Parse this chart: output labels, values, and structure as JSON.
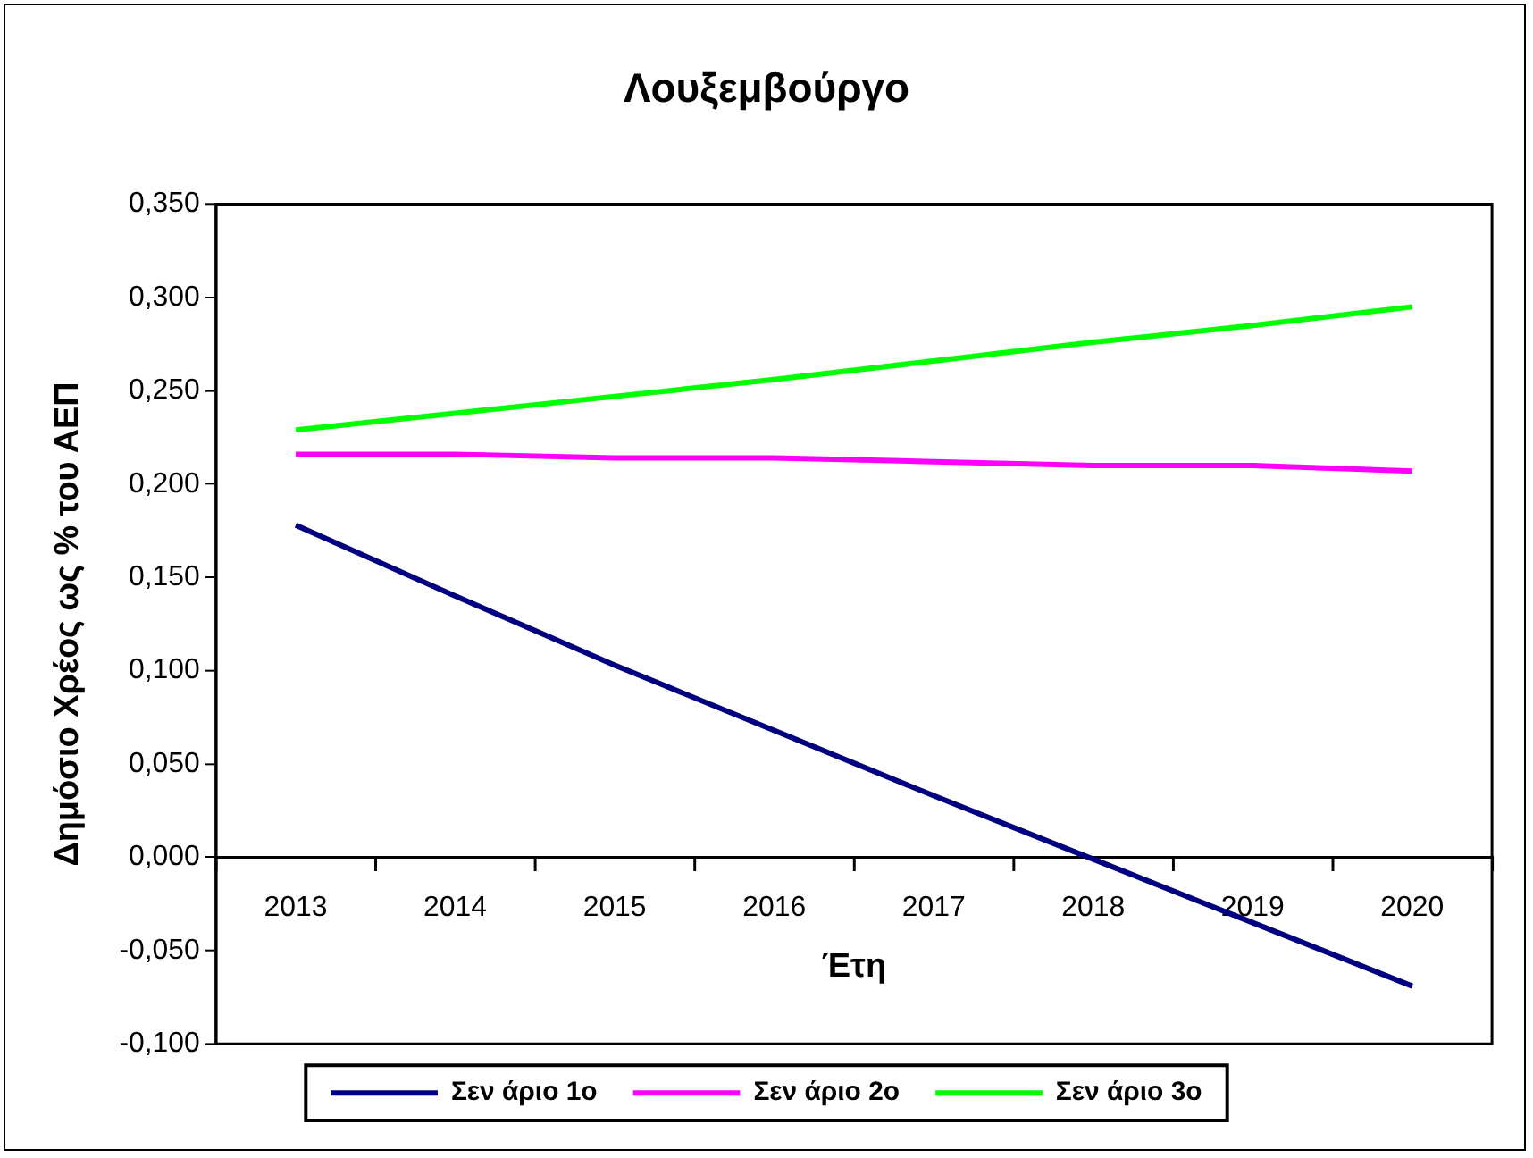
{
  "chart_data": {
    "type": "line",
    "title": "Λουξεμβούργο",
    "xlabel": "Έτη",
    "ylabel": "Δημόσιο Χρέος ως % του ΑΕΠ",
    "categories": [
      "2013",
      "2014",
      "2015",
      "2016",
      "2017",
      "2018",
      "2019",
      "2020"
    ],
    "series": [
      {
        "name": "Σεν άριο 1ο",
        "color": "#000080",
        "values": [
          0.178,
          0.14,
          0.103,
          0.068,
          0.033,
          -0.001,
          -0.035,
          -0.069
        ]
      },
      {
        "name": "Σεν άριο 2ο",
        "color": "#ff00ff",
        "values": [
          0.216,
          0.216,
          0.214,
          0.214,
          0.212,
          0.21,
          0.21,
          0.207
        ]
      },
      {
        "name": "Σεν άριο 3ο",
        "color": "#00ff00",
        "values": [
          0.229,
          0.238,
          0.247,
          0.256,
          0.266,
          0.276,
          0.285,
          0.295
        ]
      }
    ],
    "ylim": [
      -0.1,
      0.35
    ],
    "yticks": [
      {
        "value": -0.1,
        "label": "-0,100"
      },
      {
        "value": -0.05,
        "label": "-0,050"
      },
      {
        "value": 0,
        "label": "0,000"
      },
      {
        "value": 0.05,
        "label": "0,050"
      },
      {
        "value": 0.1,
        "label": "0,100"
      },
      {
        "value": 0.15,
        "label": "0,150"
      },
      {
        "value": 0.2,
        "label": "0,200"
      },
      {
        "value": 0.25,
        "label": "0,250"
      },
      {
        "value": 0.3,
        "label": "0,300"
      },
      {
        "value": 0.35,
        "label": "0,350"
      }
    ],
    "grid": false,
    "legend": "bottom",
    "marker": "none",
    "line_style": "solid"
  }
}
